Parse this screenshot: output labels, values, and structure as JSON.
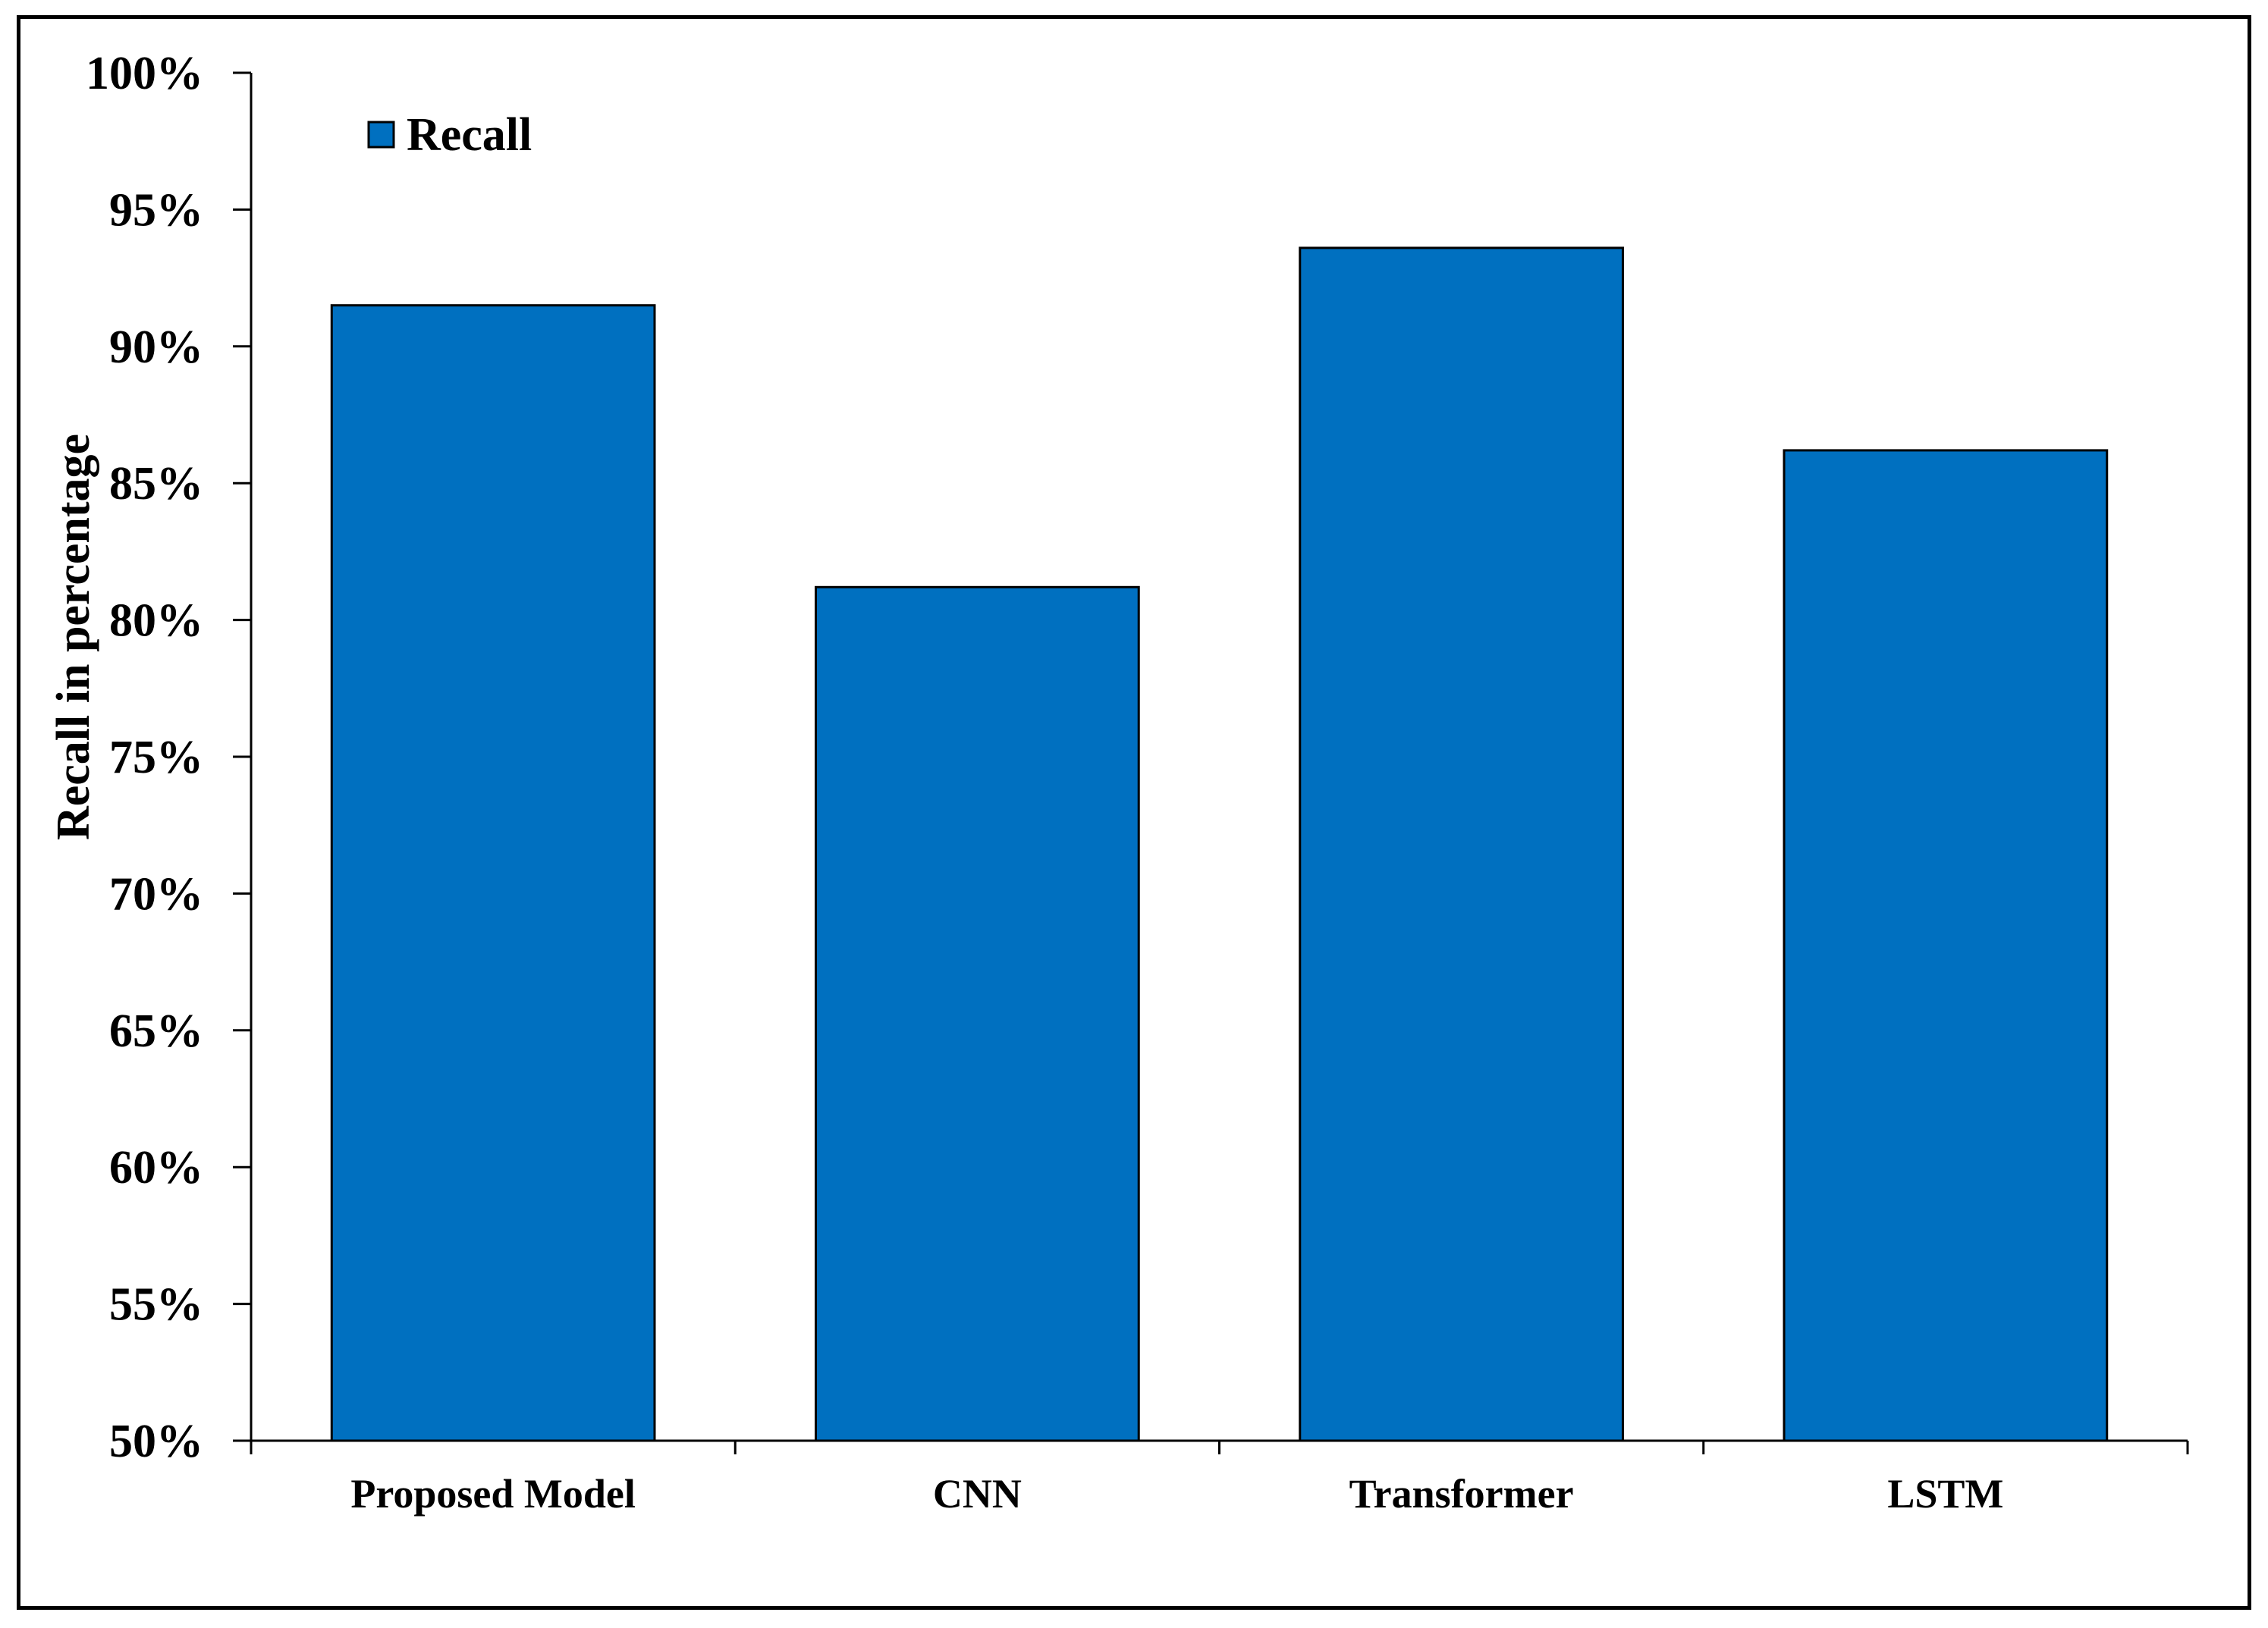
{
  "chart_data": {
    "type": "bar",
    "categories": [
      "Proposed Model",
      "CNN",
      "Transformer",
      "LSTM"
    ],
    "series": [
      {
        "name": "Recall",
        "values": [
          91.5,
          81.2,
          93.6,
          86.2
        ]
      }
    ],
    "ylabel": "Recall in percentage",
    "xlabel": "",
    "ylim": [
      50,
      100
    ],
    "yticks": [
      50,
      55,
      60,
      65,
      70,
      75,
      80,
      85,
      90,
      95,
      100
    ],
    "ytick_labels": [
      "50%",
      "55%",
      "60%",
      "65%",
      "70%",
      "75%",
      "80%",
      "85%",
      "90%",
      "95%",
      "100%"
    ],
    "grid": false,
    "legend_position": "top-left",
    "bar_color": "#0070C0",
    "bar_edge_color": "#000000"
  }
}
